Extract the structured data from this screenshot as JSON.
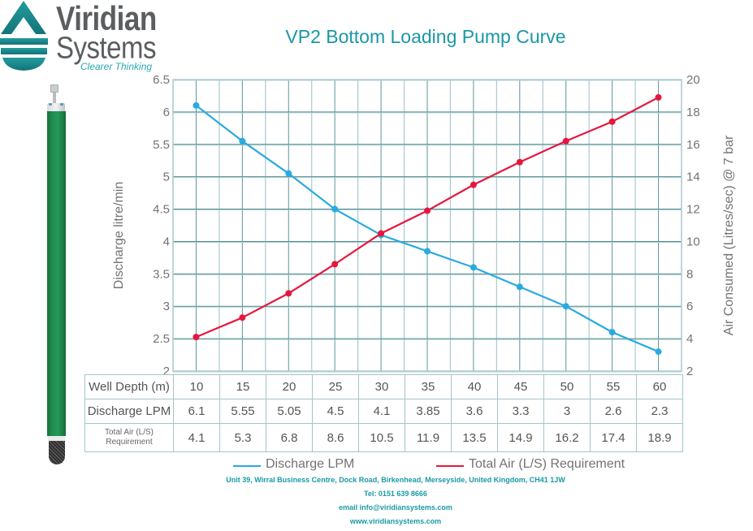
{
  "logo": {
    "icon": "water-drop-icon",
    "name_line1": "Viridian",
    "name_line2": "Systems",
    "tagline": "Clearer Thinking",
    "color": "#1e8f92"
  },
  "product_image": "vacuum-pump-tube-image",
  "chart_data": {
    "type": "line",
    "title": "VP2 Bottom Loading Pump Curve",
    "xlabel": "Well Depth (m)",
    "ylabel": "Discharge litre/min",
    "y2label": "Air Consumed (Litres/sec) @ 7 bar",
    "x": [
      10,
      15,
      20,
      25,
      30,
      35,
      40,
      45,
      50,
      55,
      60
    ],
    "ylim": [
      2,
      6.5
    ],
    "yticks": [
      6.5,
      6,
      5.5,
      5,
      4.5,
      4,
      3.5,
      3,
      2.5,
      2
    ],
    "y2lim": [
      2,
      20
    ],
    "y2ticks": [
      20,
      18,
      16,
      14,
      12,
      10,
      8,
      6,
      4,
      2
    ],
    "grid": true,
    "legend_position": "bottom",
    "series": [
      {
        "name": "Discharge LPM",
        "axis": "left",
        "color": "#29aae1",
        "values": [
          6.1,
          5.55,
          5.05,
          4.5,
          4.1,
          3.85,
          3.6,
          3.3,
          3,
          2.6,
          2.3
        ]
      },
      {
        "name": "Total Air (L/S) Requirement",
        "axis": "right",
        "color": "#e6173e",
        "values": [
          4.1,
          5.3,
          6.8,
          8.6,
          10.5,
          11.9,
          13.5,
          14.9,
          16.2,
          17.4,
          18.9
        ]
      }
    ]
  },
  "table": {
    "rows": [
      {
        "label": "Well Depth (m)",
        "values": [
          "10",
          "15",
          "20",
          "25",
          "30",
          "35",
          "40",
          "45",
          "50",
          "55",
          "60"
        ]
      },
      {
        "label": "Discharge LPM",
        "values": [
          "6.1",
          "5.55",
          "5.05",
          "4.5",
          "4.1",
          "3.85",
          "3.6",
          "3.3",
          "3",
          "2.6",
          "2.3"
        ]
      },
      {
        "label_line1": "Total Air (L/S)",
        "label_line2": "Requirement",
        "values": [
          "4.1",
          "5.3",
          "6.8",
          "8.6",
          "10.5",
          "11.9",
          "13.5",
          "14.9",
          "16.2",
          "17.4",
          "18.9"
        ]
      }
    ]
  },
  "footer": {
    "address": "Unit 39, Wirral Business Centre, Dock Road, Birkenhead, Merseyside, United Kingdom, CH41 1JW",
    "tel": "Tel: 0151 639 8666",
    "email": "email info@viridiansystems.com",
    "website": "www.viridiansystems.com"
  }
}
